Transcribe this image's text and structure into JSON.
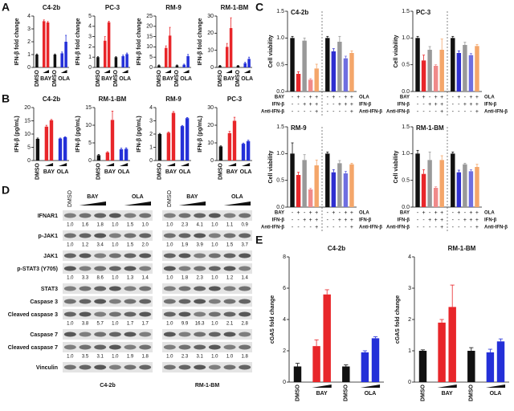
{
  "panel_labels": [
    "A",
    "B",
    "C",
    "D",
    "E"
  ],
  "chart_data": [
    {
      "type": "bar",
      "title": "C4-2b",
      "ylabel": "IFN-β fold change",
      "ylim": [
        0,
        4
      ],
      "yticks": [
        0,
        1,
        2,
        3,
        4
      ],
      "groups": [
        {
          "label": "DMSO",
          "color": "#111111",
          "values": [
            1
          ],
          "errors": [
            0.05
          ]
        },
        {
          "label": "BAY",
          "color": "#e8262a",
          "values": [
            3.6,
            3.5
          ],
          "errors": [
            0.1,
            0.08
          ]
        },
        {
          "label": "DMSO",
          "color": "#111111",
          "values": [
            1
          ],
          "errors": [
            0.05
          ]
        },
        {
          "label": "OLA",
          "color": "#2430d8",
          "values": [
            1.1,
            2.0
          ],
          "errors": [
            0.1,
            0.5
          ]
        }
      ]
    },
    {
      "type": "bar",
      "title": "PC-3",
      "ylabel": "IFN-β fold change",
      "ylim": [
        0,
        5
      ],
      "yticks": [
        0,
        1,
        2,
        3,
        4,
        5
      ],
      "groups": [
        {
          "label": "DMSO",
          "color": "#111111",
          "values": [
            1
          ],
          "errors": [
            0.05
          ]
        },
        {
          "label": "BAY",
          "color": "#e8262a",
          "values": [
            2.6,
            4.4
          ],
          "errors": [
            0.4,
            0.1
          ]
        },
        {
          "label": "DMSO",
          "color": "#111111",
          "values": [
            1
          ],
          "errors": [
            0.05
          ]
        },
        {
          "label": "OLA",
          "color": "#2430d8",
          "values": [
            1.1,
            1.3
          ],
          "errors": [
            0.1,
            0.1
          ]
        }
      ]
    },
    {
      "type": "bar",
      "title": "RM-9",
      "ylabel": "IFN-β fold change",
      "ylim": [
        0,
        25
      ],
      "yticks": [
        0,
        5,
        10,
        15,
        20,
        25
      ],
      "groups": [
        {
          "label": "DMSO",
          "color": "#111111",
          "values": [
            1
          ],
          "errors": [
            0.2
          ]
        },
        {
          "label": "BAY",
          "color": "#e8262a",
          "values": [
            9.5,
            15.5
          ],
          "errors": [
            1,
            4
          ]
        },
        {
          "label": "DMSO",
          "color": "#111111",
          "values": [
            1
          ],
          "errors": [
            0.2
          ]
        },
        {
          "label": "OLA",
          "color": "#2430d8",
          "values": [
            1.3,
            5.5
          ],
          "errors": [
            0.3,
            0.8
          ]
        }
      ]
    },
    {
      "type": "bar",
      "title": "RM-1-BM",
      "ylabel": "IFN-β fold change",
      "ylim": [
        0,
        30
      ],
      "yticks": [
        0,
        10,
        20,
        30
      ],
      "groups": [
        {
          "label": "DMSO",
          "color": "#111111",
          "values": [
            1
          ],
          "errors": [
            0.2
          ]
        },
        {
          "label": "BAY",
          "color": "#e8262a",
          "values": [
            12,
            23
          ],
          "errors": [
            2,
            6
          ]
        },
        {
          "label": "DMSO",
          "color": "#111111",
          "values": [
            1
          ],
          "errors": [
            0.2
          ]
        },
        {
          "label": "OLA",
          "color": "#2430d8",
          "values": [
            2.5,
            5
          ],
          "errors": [
            0.5,
            1
          ]
        }
      ]
    },
    {
      "type": "bar",
      "title": "C4-2b",
      "ylabel": "IFN-β (pg/mL)",
      "ylim": [
        0,
        20
      ],
      "yticks": [
        0,
        5,
        10,
        15,
        20
      ],
      "groups": [
        {
          "label": "DMSO",
          "color": "#111111",
          "values": [
            8.2
          ],
          "errors": [
            0.3
          ]
        },
        {
          "label": "BAY",
          "color": "#e8262a",
          "values": [
            12.8,
            15.2
          ],
          "errors": [
            0.5,
            0.3
          ]
        },
        {
          "label": "OLA",
          "color": "#2430d8",
          "values": [
            8.3,
            8.8
          ],
          "errors": [
            0.2,
            0.2
          ]
        }
      ]
    },
    {
      "type": "bar",
      "title": "RM-1-BM",
      "ylabel": "IFN-β (pg/mL)",
      "ylim": [
        0,
        15
      ],
      "yticks": [
        0,
        5,
        10,
        15
      ],
      "groups": [
        {
          "label": "DMSO",
          "color": "#111111",
          "values": [
            1.5
          ],
          "errors": [
            0.2
          ]
        },
        {
          "label": "BAY",
          "color": "#e8262a",
          "values": [
            2.3,
            11.5
          ],
          "errors": [
            0.2,
            2.5
          ]
        },
        {
          "label": "OLA",
          "color": "#2430d8",
          "values": [
            3.2,
            3.3
          ],
          "errors": [
            0.3,
            0.3
          ]
        }
      ]
    },
    {
      "type": "bar",
      "title": "RM-9",
      "ylabel": "IFN-β (pg/mL)",
      "ylim": [
        0,
        4
      ],
      "yticks": [
        0,
        1,
        2,
        3,
        4
      ],
      "groups": [
        {
          "label": "DMSO",
          "color": "#111111",
          "values": [
            2
          ],
          "errors": [
            0.05
          ]
        },
        {
          "label": "BAY",
          "color": "#e8262a",
          "values": [
            2.1,
            3.6
          ],
          "errors": [
            0.05,
            0.1
          ]
        },
        {
          "label": "OLA",
          "color": "#2430d8",
          "values": [
            2.6,
            3.2
          ],
          "errors": [
            0.05,
            0.05
          ]
        }
      ]
    },
    {
      "type": "bar",
      "title": "PC-3",
      "ylabel": "IFN-β (pg/mL)",
      "ylim": [
        0,
        30
      ],
      "yticks": [
        0,
        10,
        20,
        30
      ],
      "groups": [
        {
          "label": "DMSO",
          "color": "#111111",
          "values": [
            8
          ],
          "errors": [
            0.3
          ]
        },
        {
          "label": "BAY",
          "color": "#e8262a",
          "values": [
            15.5,
            22.5
          ],
          "errors": [
            1,
            2
          ]
        },
        {
          "label": "OLA",
          "color": "#2430d8",
          "values": [
            9.5,
            11
          ],
          "errors": [
            0.4,
            0.5
          ]
        }
      ]
    },
    {
      "type": "bar",
      "title": "C4-2b",
      "ylabel": "Cell viability",
      "ylim": [
        0,
        1.5
      ],
      "yticks": [
        {
          "value": 0,
          "label": "0.0"
        },
        0.5,
        {
          "value": 1,
          "label": "1.0"
        },
        1.5
      ],
      "groups": [
        {
          "colors": [
            "#111111",
            "#e8262a",
            "#999999",
            "#f08a8a",
            "#f4a66a"
          ],
          "values": [
            1,
            0.33,
            0.95,
            0.22,
            0.43
          ],
          "errors": [
            0.03,
            0.04,
            0.05,
            0.02,
            0.08
          ]
        },
        {
          "colors": [
            "#111111",
            "#2f2fd0",
            "#999999",
            "#6f6fe0",
            "#f4a66a"
          ],
          "values": [
            1,
            0.75,
            0.93,
            0.62,
            0.72
          ],
          "errors": [
            0.03,
            0.05,
            0.1,
            0.04,
            0.04
          ]
        }
      ],
      "treatments": [
        {
          "left": "BAY",
          "right": "OLA",
          "signs": [
            "-",
            "+",
            "-",
            "+",
            "+",
            "-",
            "+",
            "-",
            "+",
            "+"
          ]
        },
        {
          "left": "IFN-β",
          "right": "IFN-β",
          "signs": [
            "-",
            "-",
            "+",
            "+",
            "+",
            "-",
            "-",
            "+",
            "+",
            "+"
          ]
        },
        {
          "left": "Anti-IFN-β",
          "right": "Anti-IFN-β",
          "signs": [
            "-",
            "-",
            "-",
            "-",
            "+",
            "-",
            "-",
            "-",
            "-",
            "+"
          ]
        }
      ]
    },
    {
      "type": "bar",
      "title": "PC-3",
      "ylabel": "Cell viability",
      "ylim": [
        0,
        1.5
      ],
      "yticks": [
        {
          "value": 0,
          "label": "0.0"
        },
        0.5,
        {
          "value": 1,
          "label": "1.0"
        },
        1.5
      ],
      "groups": [
        {
          "colors": [
            "#111111",
            "#e8262a",
            "#999999",
            "#f08a8a",
            "#f4a66a"
          ],
          "values": [
            1,
            0.58,
            0.78,
            0.48,
            0.78
          ],
          "errors": [
            0.03,
            0.1,
            0.06,
            0.02,
            0.2
          ]
        },
        {
          "colors": [
            "#111111",
            "#2f2fd0",
            "#999999",
            "#6f6fe0",
            "#f4a66a"
          ],
          "values": [
            1,
            0.72,
            0.87,
            0.68,
            0.85
          ],
          "errors": [
            0.03,
            0.04,
            0.05,
            0.03,
            0.03
          ]
        }
      ],
      "treatments": [
        {
          "left": "BAY",
          "right": "OLA",
          "signs": [
            "-",
            "+",
            "-",
            "+",
            "+",
            "-",
            "+",
            "-",
            "+",
            "+"
          ]
        },
        {
          "left": "IFN-β",
          "right": "IFN-β",
          "signs": [
            "-",
            "-",
            "+",
            "+",
            "+",
            "-",
            "-",
            "+",
            "+",
            "+"
          ]
        },
        {
          "left": "Anti-IFN-β",
          "right": "Anti-IFN-β",
          "signs": [
            "-",
            "-",
            "-",
            "-",
            "+",
            "-",
            "-",
            "-",
            "-",
            "+"
          ]
        }
      ]
    },
    {
      "type": "bar",
      "title": "RM-9",
      "ylabel": "Cell viability",
      "ylim": [
        0,
        1.5
      ],
      "yticks": [
        {
          "value": 0,
          "label": "0.0"
        },
        0.5,
        {
          "value": 1,
          "label": "1.0"
        },
        1.5
      ],
      "groups": [
        {
          "colors": [
            "#111111",
            "#e8262a",
            "#999999",
            "#f08a8a",
            "#f4a66a"
          ],
          "values": [
            1,
            0.6,
            0.88,
            0.33,
            0.78
          ],
          "errors": [
            0.2,
            0.05,
            0.1,
            0.02,
            0.1
          ]
        },
        {
          "colors": [
            "#111111",
            "#2f2fd0",
            "#999999",
            "#6f6fe0",
            "#f4a66a"
          ],
          "values": [
            1,
            0.65,
            0.82,
            0.63,
            0.8
          ],
          "errors": [
            0.03,
            0.05,
            0.05,
            0.04,
            0.02
          ]
        }
      ],
      "treatments": [
        {
          "left": "BAY",
          "right": "OLA",
          "signs": [
            "-",
            "+",
            "-",
            "+",
            "+",
            "-",
            "+",
            "-",
            "+",
            "+"
          ]
        },
        {
          "left": "IFN-β",
          "right": "IFN-β",
          "signs": [
            "-",
            "-",
            "+",
            "+",
            "+",
            "-",
            "-",
            "+",
            "+",
            "+"
          ]
        },
        {
          "left": "Anti-IFN-β",
          "right": "Anti-IFN-β",
          "signs": [
            "-",
            "-",
            "-",
            "-",
            "+",
            "-",
            "-",
            "-",
            "-",
            "+"
          ]
        }
      ]
    },
    {
      "type": "bar",
      "title": "RM-1-BM",
      "ylabel": "Cell viability",
      "ylim": [
        0,
        1.5
      ],
      "yticks": [
        {
          "value": 0,
          "label": "0.0"
        },
        0.5,
        {
          "value": 1,
          "label": "1.0"
        },
        1.5
      ],
      "groups": [
        {
          "colors": [
            "#111111",
            "#e8262a",
            "#999999",
            "#f08a8a",
            "#f4a66a"
          ],
          "values": [
            1,
            0.62,
            0.88,
            0.36,
            0.88
          ],
          "errors": [
            0.06,
            0.08,
            0.15,
            0.02,
            0.08
          ]
        },
        {
          "colors": [
            "#111111",
            "#2f2fd0",
            "#999999",
            "#6f6fe0",
            "#f4a66a"
          ],
          "values": [
            1,
            0.65,
            0.8,
            0.67,
            0.75
          ],
          "errors": [
            0.03,
            0.04,
            0.02,
            0.03,
            0.05
          ]
        }
      ],
      "treatments": [
        {
          "left": "BAY",
          "right": "OLA",
          "signs": [
            "-",
            "+",
            "-",
            "+",
            "+",
            "-",
            "+",
            "-",
            "+",
            "+"
          ]
        },
        {
          "left": "IFN-β",
          "right": "IFN-β",
          "signs": [
            "-",
            "-",
            "+",
            "+",
            "+",
            "-",
            "-",
            "+",
            "+",
            "+"
          ]
        },
        {
          "left": "Anti-IFN-β",
          "right": "Anti-IFN-β",
          "signs": [
            "-",
            "-",
            "-",
            "-",
            "+",
            "-",
            "-",
            "-",
            "-",
            "+"
          ]
        }
      ]
    },
    {
      "type": "bar",
      "title": "C4-2b",
      "ylabel": "cGAS fold change",
      "ylim": [
        0,
        8
      ],
      "yticks": [
        0,
        2,
        4,
        6,
        8
      ],
      "groups": [
        {
          "label": "DMSO",
          "color": "#111111",
          "values": [
            1
          ],
          "errors": [
            0.2
          ]
        },
        {
          "label": "BAY",
          "color": "#e8262a",
          "values": [
            2.3,
            5.6
          ],
          "errors": [
            0.4,
            0.3
          ]
        },
        {
          "label": "DMSO",
          "color": "#111111",
          "values": [
            1
          ],
          "errors": [
            0.1
          ]
        },
        {
          "label": "OLA",
          "color": "#2430d8",
          "values": [
            1.9,
            2.8
          ],
          "errors": [
            0.1,
            0.1
          ]
        }
      ]
    },
    {
      "type": "bar",
      "title": "RM-1-BM",
      "ylabel": "cGAS fold change",
      "ylim": [
        0,
        4
      ],
      "yticks": [
        0,
        1,
        2,
        3,
        4
      ],
      "groups": [
        {
          "label": "DMSO",
          "color": "#111111",
          "values": [
            1
          ],
          "errors": [
            0.03
          ]
        },
        {
          "label": "BAY",
          "color": "#e8262a",
          "values": [
            1.9,
            2.4
          ],
          "errors": [
            0.1,
            0.7
          ]
        },
        {
          "label": "DMSO",
          "color": "#111111",
          "values": [
            1
          ],
          "errors": [
            0.1
          ]
        },
        {
          "label": "OLA",
          "color": "#2430d8",
          "values": [
            0.95,
            1.3
          ],
          "errors": [
            0.1,
            0.08
          ]
        }
      ]
    }
  ],
  "blot": {
    "lane_groups": [
      "DMSO",
      "BAY",
      "OLA"
    ],
    "cell_lines": [
      "C4-2b",
      "RM-1-BM"
    ],
    "rows": [
      {
        "label": "IFNAR1",
        "quant": [
          [
            "1.0",
            "1.6",
            "1.8",
            "1.0",
            "1.5",
            "1.0"
          ],
          [
            "1.0",
            "2.3",
            "4.1",
            "1.0",
            "1.1",
            "0.9"
          ]
        ]
      },
      {
        "label": "p-JAK1",
        "quant": [
          [
            "1.0",
            "1.2",
            "3.4",
            "1.0",
            "1.5",
            "2.0"
          ],
          [
            "1.0",
            "1.9",
            "3.9",
            "1.0",
            "1.5",
            "3.7"
          ]
        ]
      },
      {
        "label": "JAK1"
      },
      {
        "label": "p-STAT3 (Y705)",
        "quant": [
          [
            "1.0",
            "3.3",
            "8.6",
            "1.0",
            "1.3",
            "1.4"
          ],
          [
            "1.0",
            "1.8",
            "2.3",
            "1.0",
            "1.2",
            "1.4"
          ]
        ]
      },
      {
        "label": "STAT3"
      },
      {
        "label": "Caspase 3"
      },
      {
        "label": "Cleaved caspase 3",
        "quant": [
          [
            "1.0",
            "3.8",
            "5.7",
            "1.0",
            "1.7",
            "1.7"
          ],
          [
            "1.0",
            "9.9",
            "16.3",
            "1.0",
            "2.1",
            "2.8"
          ]
        ]
      },
      {
        "label": "Caspase 7"
      },
      {
        "label": "Cleaved caspase 7",
        "quant": [
          [
            "1.0",
            "3.5",
            "3.1",
            "1.0",
            "1.9",
            "1.8"
          ],
          [
            "1.0",
            "2.3",
            "3.1",
            "1.0",
            "1.0",
            "1.8"
          ]
        ]
      },
      {
        "label": "Vinculin"
      }
    ]
  }
}
